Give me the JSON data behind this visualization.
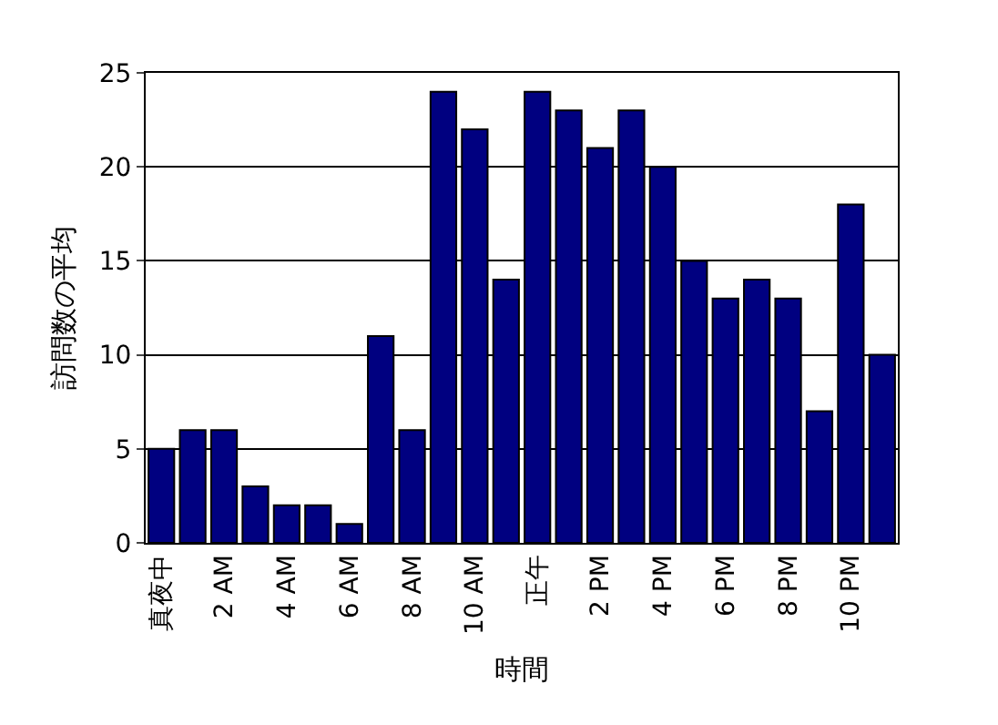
{
  "chart_data": {
    "type": "bar",
    "xlabel": "時間",
    "ylabel": "訪問数の平均",
    "categories": [
      "真夜中",
      null,
      "2 AM",
      null,
      "4 AM",
      null,
      "6 AM",
      null,
      "8 AM",
      null,
      "10 AM",
      null,
      "正午",
      null,
      "2 PM",
      null,
      "4 PM",
      null,
      "6 PM",
      null,
      "8 PM",
      null,
      "10 PM",
      null
    ],
    "values": [
      5,
      6,
      6,
      3,
      2,
      2,
      1,
      11,
      6,
      24,
      22,
      14,
      24,
      23,
      21,
      23,
      20,
      15,
      13,
      14,
      13,
      7,
      18,
      10
    ],
    "color": "#000080",
    "ylim": [
      0,
      25
    ],
    "yticks": [
      0,
      5,
      10,
      15,
      20,
      25
    ],
    "grid": "y"
  }
}
